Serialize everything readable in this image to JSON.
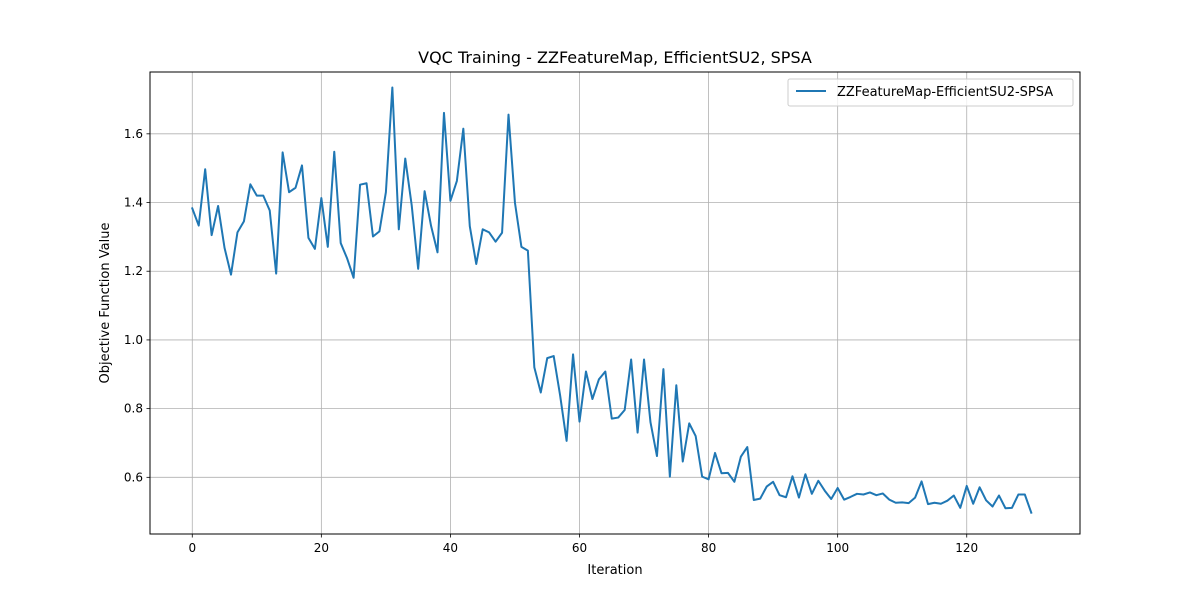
{
  "chart_data": {
    "type": "line",
    "title": "VQC Training - ZZFeatureMap, EfficientSU2, SPSA",
    "xlabel": "Iteration",
    "ylabel": "Objective Function Value",
    "xlim": [
      -6.55,
      137.55
    ],
    "ylim": [
      0.435,
      1.78
    ],
    "xticks": [
      0,
      20,
      40,
      60,
      80,
      100,
      120
    ],
    "yticks": [
      0.6,
      0.8,
      1.0,
      1.2,
      1.4,
      1.6
    ],
    "ytick_labels": [
      "0.6",
      "0.8",
      "1.0",
      "1.2",
      "1.4",
      "1.6"
    ],
    "grid": true,
    "legend_position": "upper-right",
    "series": [
      {
        "name": "ZZFeatureMap-EfficientSU2-SPSA",
        "color": "#1f77b4",
        "x": [
          0,
          1,
          2,
          3,
          4,
          5,
          6,
          7,
          8,
          9,
          10,
          11,
          12,
          13,
          14,
          15,
          16,
          17,
          18,
          19,
          20,
          21,
          22,
          23,
          24,
          25,
          26,
          27,
          28,
          29,
          30,
          31,
          32,
          33,
          34,
          35,
          36,
          37,
          38,
          39,
          40,
          41,
          42,
          43,
          44,
          45,
          46,
          47,
          48,
          49,
          50,
          51,
          52,
          53,
          54,
          55,
          56,
          57,
          58,
          59,
          60,
          61,
          62,
          63,
          64,
          65,
          66,
          67,
          68,
          69,
          70,
          71,
          72,
          73,
          74,
          75,
          76,
          77,
          78,
          79,
          80,
          81,
          82,
          83,
          84,
          85,
          86,
          87,
          88,
          89,
          90,
          91,
          92,
          93,
          94,
          95,
          96,
          97,
          98,
          99,
          100,
          101,
          102,
          103,
          104,
          105,
          106,
          107,
          108,
          109,
          110,
          111,
          112,
          113,
          114,
          115,
          116,
          117,
          118,
          119,
          120,
          121,
          122,
          123,
          124,
          125,
          126,
          127,
          128,
          129,
          130
        ],
        "y": [
          1.383,
          1.333,
          1.497,
          1.305,
          1.39,
          1.268,
          1.19,
          1.313,
          1.345,
          1.453,
          1.42,
          1.42,
          1.377,
          1.193,
          1.546,
          1.43,
          1.443,
          1.508,
          1.297,
          1.265,
          1.413,
          1.271,
          1.548,
          1.282,
          1.237,
          1.181,
          1.452,
          1.456,
          1.301,
          1.316,
          1.43,
          1.735,
          1.322,
          1.528,
          1.392,
          1.207,
          1.433,
          1.332,
          1.255,
          1.661,
          1.405,
          1.463,
          1.615,
          1.331,
          1.221,
          1.322,
          1.313,
          1.286,
          1.312,
          1.656,
          1.399,
          1.271,
          1.26,
          0.92,
          0.847,
          0.947,
          0.953,
          0.838,
          0.706,
          0.958,
          0.762,
          0.908,
          0.828,
          0.885,
          0.908,
          0.771,
          0.774,
          0.796,
          0.943,
          0.73,
          0.943,
          0.76,
          0.662,
          0.915,
          0.602,
          0.868,
          0.646,
          0.757,
          0.72,
          0.602,
          0.594,
          0.671,
          0.612,
          0.613,
          0.587,
          0.66,
          0.688,
          0.534,
          0.538,
          0.573,
          0.587,
          0.548,
          0.542,
          0.603,
          0.541,
          0.609,
          0.552,
          0.59,
          0.561,
          0.537,
          0.569,
          0.535,
          0.543,
          0.552,
          0.55,
          0.556,
          0.548,
          0.553,
          0.535,
          0.526,
          0.527,
          0.525,
          0.541,
          0.588,
          0.522,
          0.526,
          0.523,
          0.532,
          0.547,
          0.511,
          0.575,
          0.523,
          0.571,
          0.533,
          0.515,
          0.547,
          0.51,
          0.511,
          0.55,
          0.55,
          0.497
        ]
      }
    ]
  }
}
